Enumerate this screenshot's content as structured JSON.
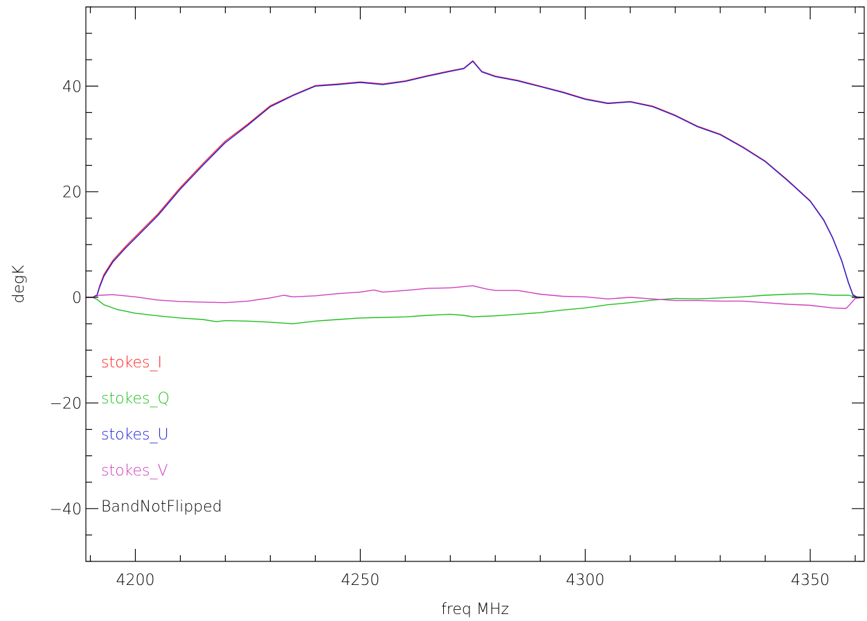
{
  "chart_data": {
    "type": "line",
    "xlabel": "freq MHz",
    "ylabel": "degK",
    "xlim": [
      4189,
      4362
    ],
    "ylim": [
      -50,
      55
    ],
    "x_ticks": [
      4200,
      4250,
      4300,
      4350
    ],
    "x_tick_labels": [
      "4200",
      "4250",
      "4300",
      "4350"
    ],
    "y_ticks": [
      -40,
      -20,
      0,
      20,
      40
    ],
    "y_tick_labels": [
      "−40",
      "−20",
      "0",
      "20",
      "40"
    ],
    "x_minor_step": 10,
    "y_minor_step": 5,
    "grid": false,
    "legend_position": "lower-left",
    "colors": {
      "stokes_I": "#ff2020",
      "stokes_Q": "#20c020",
      "stokes_U": "#2020e0",
      "stokes_V": "#d040c0",
      "axes": "#000000"
    },
    "series": [
      {
        "name": "stokes_I",
        "color": "#ff2020",
        "x": [
          4189,
          4190.5,
          4191.5,
          4192,
          4193,
          4195,
          4198,
          4200,
          4205,
          4210,
          4215,
          4220,
          4225,
          4230,
          4235,
          4240,
          4245,
          4250,
          4255,
          4260,
          4265,
          4270,
          4273,
          4275,
          4277,
          4280,
          4285,
          4290,
          4295,
          4300,
          4305,
          4310,
          4315,
          4320,
          4325,
          4330,
          4335,
          4340,
          4345,
          4350,
          4353,
          4355,
          4357,
          4358.5,
          4359.5,
          4360.5,
          4362
        ],
        "y": [
          0,
          0,
          0.5,
          2,
          4.3,
          7,
          9.8,
          11.5,
          15.8,
          20.8,
          25.3,
          29.6,
          32.8,
          36.3,
          38.3,
          40.1,
          40.4,
          40.8,
          40.4,
          41,
          42,
          42.9,
          43.4,
          44.8,
          42.8,
          41.9,
          41.1,
          40,
          38.9,
          37.6,
          36.8,
          37.1,
          36.2,
          34.5,
          32.4,
          30.9,
          28.5,
          25.8,
          22.2,
          18.3,
          14.7,
          11.3,
          7,
          2.8,
          0.5,
          0,
          0
        ]
      },
      {
        "name": "stokes_Q",
        "color": "#20c020",
        "x": [
          4189,
          4190.5,
          4191.5,
          4193,
          4196,
          4200,
          4205,
          4210,
          4215,
          4218,
          4220,
          4225,
          4230,
          4235,
          4240,
          4245,
          4250,
          4255,
          4260,
          4265,
          4270,
          4273,
          4275,
          4277,
          4280,
          4285,
          4290,
          4295,
          4300,
          4305,
          4310,
          4315,
          4320,
          4325,
          4330,
          4335,
          4340,
          4345,
          4350,
          4355,
          4358.5,
          4360,
          4362
        ],
        "y": [
          0,
          0,
          -0.4,
          -1.4,
          -2.3,
          -3,
          -3.5,
          -3.9,
          -4.2,
          -4.6,
          -4.4,
          -4.5,
          -4.7,
          -5,
          -4.5,
          -4.2,
          -3.9,
          -3.8,
          -3.7,
          -3.4,
          -3.2,
          -3.4,
          -3.7,
          -3.6,
          -3.5,
          -3.2,
          -2.9,
          -2.4,
          -2,
          -1.4,
          -1,
          -0.5,
          -0.2,
          -0.3,
          -0.1,
          0.1,
          0.4,
          0.6,
          0.7,
          0.4,
          0.4,
          0.1,
          0
        ]
      },
      {
        "name": "stokes_U",
        "color": "#2020e0",
        "x": [
          4189,
          4190.5,
          4191.5,
          4192,
          4193,
          4195,
          4198,
          4200,
          4205,
          4210,
          4215,
          4220,
          4225,
          4230,
          4235,
          4240,
          4245,
          4250,
          4255,
          4260,
          4265,
          4270,
          4273,
          4275,
          4277,
          4280,
          4285,
          4290,
          4295,
          4300,
          4305,
          4310,
          4315,
          4320,
          4325,
          4330,
          4335,
          4340,
          4345,
          4350,
          4353,
          4355,
          4357,
          4358.5,
          4359.5,
          4360.5,
          4362
        ],
        "y": [
          0,
          0,
          0.4,
          1.8,
          4,
          6.7,
          9.5,
          11.2,
          15.5,
          20.5,
          25,
          29.3,
          32.6,
          36.1,
          38.2,
          40,
          40.3,
          40.7,
          40.3,
          40.9,
          41.9,
          42.8,
          43.3,
          44.7,
          42.7,
          41.8,
          41,
          39.9,
          38.8,
          37.5,
          36.7,
          37,
          36.1,
          34.4,
          32.3,
          30.8,
          28.4,
          25.7,
          22.1,
          18.2,
          14.6,
          11.2,
          6.9,
          2.7,
          0.4,
          0,
          0
        ]
      },
      {
        "name": "stokes_V",
        "color": "#d040c0",
        "x": [
          4189,
          4190.5,
          4192,
          4195,
          4200,
          4205,
          4210,
          4215,
          4220,
          4225,
          4230,
          4233,
          4235,
          4240,
          4245,
          4250,
          4253,
          4255,
          4260,
          4265,
          4270,
          4275,
          4278,
          4280,
          4285,
          4290,
          4295,
          4300,
          4305,
          4310,
          4315,
          4320,
          4325,
          4330,
          4335,
          4340,
          4345,
          4350,
          4355,
          4358,
          4360,
          4362
        ],
        "y": [
          0,
          0,
          0.4,
          0.5,
          0.1,
          -0.5,
          -0.8,
          -0.9,
          -1,
          -0.7,
          -0.1,
          0.4,
          0.1,
          0.3,
          0.7,
          1,
          1.4,
          1,
          1.3,
          1.7,
          1.8,
          2.2,
          1.6,
          1.3,
          1.3,
          0.6,
          0.2,
          0.1,
          -0.3,
          0,
          -0.3,
          -0.6,
          -0.6,
          -0.7,
          -0.7,
          -1,
          -1.3,
          -1.5,
          -2,
          -2.1,
          -0.2,
          0
        ]
      }
    ],
    "legend": [
      {
        "label": "stokes_I",
        "color": "#ff2020"
      },
      {
        "label": "stokes_Q",
        "color": "#20c020"
      },
      {
        "label": "stokes_U",
        "color": "#2020e0"
      },
      {
        "label": "stokes_V",
        "color": "#d040c0"
      },
      {
        "label": "BandNotFlipped",
        "color": "#000000"
      }
    ]
  }
}
